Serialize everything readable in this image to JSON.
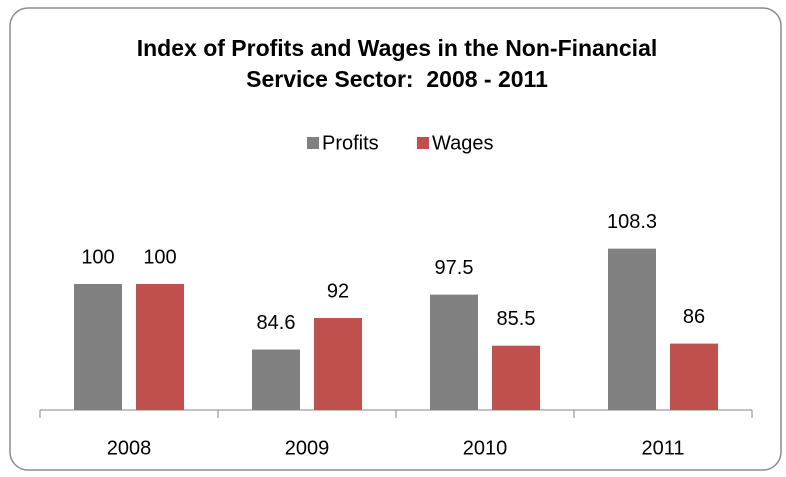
{
  "chart_data": {
    "type": "bar",
    "title": [
      "Index of Profits and Wages in the Non-Financial",
      "Service Sector:  2008 - 2011"
    ],
    "categories": [
      "2008",
      "2009",
      "2010",
      "2011"
    ],
    "series": [
      {
        "name": "Profits",
        "color": "#808080",
        "values": [
          100,
          84.6,
          97.5,
          108.3
        ]
      },
      {
        "name": "Wages",
        "color": "#c0504d",
        "values": [
          100,
          92,
          85.5,
          86
        ]
      }
    ],
    "ylim": [
      70.4,
      110
    ],
    "legend": "top"
  }
}
